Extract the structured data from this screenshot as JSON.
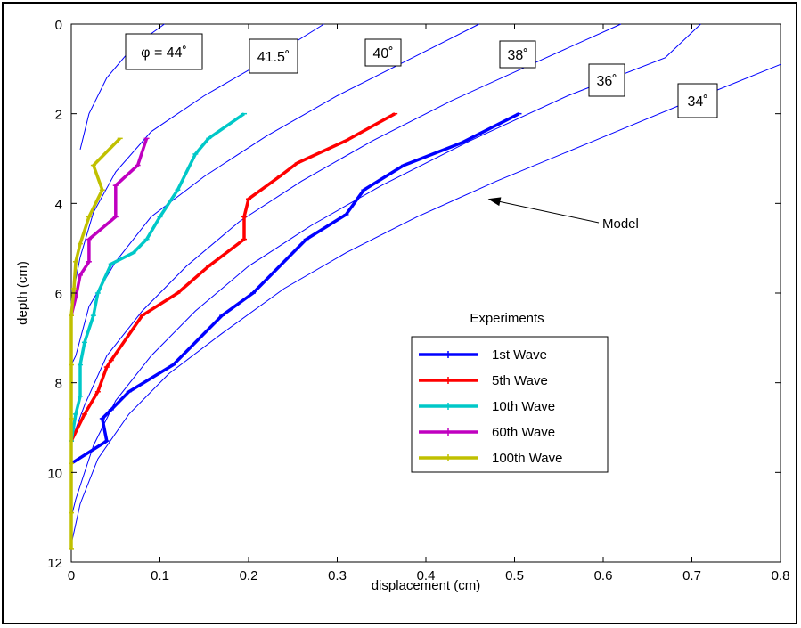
{
  "chart_data": {
    "type": "line",
    "xlabel": "displacement (cm)",
    "ylabel": "depth (cm)",
    "xlim": [
      0,
      0.8
    ],
    "ylim": [
      0,
      12
    ],
    "y_reversed": true,
    "x_ticks": [
      "0",
      "0.1",
      "0.2",
      "0.3",
      "0.4",
      "0.5",
      "0.6",
      "0.7",
      "0.8"
    ],
    "y_ticks": [
      "0",
      "2",
      "4",
      "6",
      "8",
      "10",
      "12"
    ],
    "x_tick_values": [
      0,
      0.1,
      0.2,
      0.3,
      0.4,
      0.5,
      0.6,
      0.7,
      0.8
    ],
    "y_tick_values": [
      0,
      2,
      4,
      6,
      8,
      10,
      12
    ],
    "grid": false,
    "model_color": "#0000ff",
    "model_curves": [
      {
        "label": "φ = 44˚",
        "points": [
          [
            0.105,
            0
          ],
          [
            0.07,
            0.5
          ],
          [
            0.04,
            1.2
          ],
          [
            0.02,
            2
          ],
          [
            0.01,
            2.8
          ]
        ]
      },
      {
        "label": "41.5˚",
        "points": [
          [
            0.285,
            0
          ],
          [
            0.22,
            0.8
          ],
          [
            0.15,
            1.6
          ],
          [
            0.09,
            2.4
          ],
          [
            0.05,
            3.3
          ],
          [
            0.025,
            4.2
          ],
          [
            0.01,
            5.2
          ],
          [
            0,
            6.2
          ]
        ]
      },
      {
        "label": "40˚",
        "points": [
          [
            0.46,
            0
          ],
          [
            0.38,
            0.8
          ],
          [
            0.3,
            1.6
          ],
          [
            0.22,
            2.5
          ],
          [
            0.15,
            3.4
          ],
          [
            0.09,
            4.3
          ],
          [
            0.05,
            5.3
          ],
          [
            0.02,
            6.3
          ],
          [
            0.005,
            7.4
          ],
          [
            0,
            7.6
          ]
        ]
      },
      {
        "label": "38˚",
        "points": [
          [
            0.62,
            0
          ],
          [
            0.53,
            0.8
          ],
          [
            0.43,
            1.7
          ],
          [
            0.34,
            2.6
          ],
          [
            0.26,
            3.5
          ],
          [
            0.19,
            4.4
          ],
          [
            0.13,
            5.4
          ],
          [
            0.08,
            6.4
          ],
          [
            0.04,
            7.4
          ],
          [
            0.015,
            8.5
          ],
          [
            0,
            9.3
          ]
        ]
      },
      {
        "label": "36˚",
        "points": [
          [
            0.71,
            0
          ],
          [
            0.67,
            0.75
          ],
          [
            0.56,
            1.6
          ],
          [
            0.45,
            2.6
          ],
          [
            0.35,
            3.6
          ],
          [
            0.27,
            4.5
          ],
          [
            0.2,
            5.4
          ],
          [
            0.14,
            6.4
          ],
          [
            0.09,
            7.4
          ],
          [
            0.05,
            8.4
          ],
          [
            0.025,
            9.4
          ],
          [
            0.005,
            10.6
          ],
          [
            0,
            11
          ]
        ]
      },
      {
        "label": "34˚",
        "points": [
          [
            0.8,
            0.9
          ],
          [
            0.7,
            1.7
          ],
          [
            0.59,
            2.6
          ],
          [
            0.48,
            3.5
          ],
          [
            0.39,
            4.3
          ],
          [
            0.31,
            5.1
          ],
          [
            0.24,
            5.9
          ],
          [
            0.17,
            6.9
          ],
          [
            0.11,
            7.8
          ],
          [
            0.065,
            8.7
          ],
          [
            0.03,
            9.7
          ],
          [
            0.01,
            10.7
          ],
          [
            0,
            11.6
          ]
        ]
      }
    ],
    "annotation": {
      "text": "Model",
      "target": [
        0.47,
        3.9
      ]
    },
    "legend_title": "Experiments",
    "legend_position": "lower-center",
    "series": [
      {
        "name": "1st Wave",
        "color": "#0000ff",
        "points": [
          [
            0.505,
            2
          ],
          [
            0.44,
            2.65
          ],
          [
            0.375,
            3.15
          ],
          [
            0.33,
            3.7
          ],
          [
            0.31,
            4.25
          ],
          [
            0.265,
            4.8
          ],
          [
            0.205,
            6
          ],
          [
            0.17,
            6.5
          ],
          [
            0.115,
            7.6
          ],
          [
            0.065,
            8.2
          ],
          [
            0.045,
            8.6
          ],
          [
            0.035,
            8.8
          ],
          [
            0.04,
            9.3
          ],
          [
            0,
            9.8
          ]
        ]
      },
      {
        "name": "5th Wave",
        "color": "#ff0000",
        "points": [
          [
            0.365,
            2
          ],
          [
            0.31,
            2.6
          ],
          [
            0.255,
            3.1
          ],
          [
            0.235,
            3.4
          ],
          [
            0.2,
            3.9
          ],
          [
            0.195,
            4.3
          ],
          [
            0.195,
            4.8
          ],
          [
            0.155,
            5.4
          ],
          [
            0.12,
            6
          ],
          [
            0.08,
            6.5
          ],
          [
            0.045,
            7.5
          ],
          [
            0.04,
            7.65
          ],
          [
            0.03,
            8.2
          ],
          [
            0.015,
            8.7
          ],
          [
            0,
            9.3
          ]
        ]
      },
      {
        "name": "10th Wave",
        "color": "#00c8c8",
        "points": [
          [
            0.195,
            2
          ],
          [
            0.155,
            2.55
          ],
          [
            0.14,
            2.9
          ],
          [
            0.12,
            3.7
          ],
          [
            0.1,
            4.3
          ],
          [
            0.085,
            4.8
          ],
          [
            0.07,
            5.1
          ],
          [
            0.045,
            5.35
          ],
          [
            0.03,
            6
          ],
          [
            0.025,
            6.5
          ],
          [
            0.015,
            7.1
          ],
          [
            0.01,
            7.6
          ],
          [
            0.01,
            8.3
          ],
          [
            0.005,
            8.7
          ],
          [
            0,
            9.3
          ]
        ]
      },
      {
        "name": "60th Wave",
        "color": "#c000c0",
        "points": [
          [
            0.085,
            2.55
          ],
          [
            0.075,
            3.15
          ],
          [
            0.05,
            3.6
          ],
          [
            0.05,
            4.3
          ],
          [
            0.02,
            4.8
          ],
          [
            0.02,
            5.3
          ],
          [
            0.01,
            5.6
          ],
          [
            0.005,
            6.1
          ],
          [
            0,
            6.5
          ]
        ]
      },
      {
        "name": "100th Wave",
        "color": "#c0c000",
        "points": [
          [
            0.055,
            2.55
          ],
          [
            0.025,
            3.15
          ],
          [
            0.035,
            3.7
          ],
          [
            0.02,
            4.3
          ],
          [
            0.01,
            4.9
          ],
          [
            0.005,
            5.3
          ],
          [
            0.003,
            5.9
          ],
          [
            0,
            6.5
          ],
          [
            0,
            7.6
          ],
          [
            0,
            8.8
          ],
          [
            0,
            9.8
          ],
          [
            0,
            10.9
          ],
          [
            0,
            11.7
          ]
        ]
      }
    ]
  }
}
